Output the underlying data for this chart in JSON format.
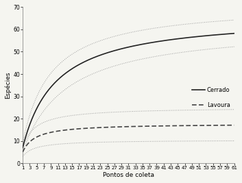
{
  "title": "",
  "xlabel": "Pontos de coleta",
  "ylabel": "Espécies",
  "xlim": [
    1,
    61
  ],
  "ylim": [
    0,
    70
  ],
  "yticks": [
    0,
    10,
    20,
    30,
    40,
    50,
    60,
    70
  ],
  "xtick_labels": [
    "1",
    "3",
    "5",
    "7",
    "9",
    "11",
    "13",
    "15",
    "17",
    "19",
    "21",
    "23",
    "25",
    "27",
    "29",
    "31",
    "33",
    "35",
    "37",
    "39",
    "41",
    "43",
    "45",
    "47",
    "49",
    "51",
    "53",
    "55",
    "57",
    "59",
    "61"
  ],
  "xtick_values": [
    1,
    3,
    5,
    7,
    9,
    11,
    13,
    15,
    17,
    19,
    21,
    23,
    25,
    27,
    29,
    31,
    33,
    35,
    37,
    39,
    41,
    43,
    45,
    47,
    49,
    51,
    53,
    55,
    57,
    59,
    61
  ],
  "cerrado_color": "#222222",
  "lavoura_color": "#444444",
  "ci_color": "#999999",
  "background_color": "#f5f5f0",
  "legend_cerrado": "Cerrado",
  "legend_lavoura": "Lavoura",
  "font_size": 6.5,
  "lw_main": 1.2,
  "lw_ci": 0.7,
  "cerrado_a": 7.826,
  "cerrado_b": 0.118,
  "cerrado_up_a": 10.295,
  "cerrado_up_b": 0.1439,
  "cerrado_lo_a": 5.439,
  "cerrado_lo_b": 0.0877,
  "lavoura_a": 6.957,
  "lavoura_b": 0.3914,
  "lavoura_up_a": 9.706,
  "lavoura_up_b": 0.3866,
  "lavoura_lo_a": 4.209,
  "lavoura_lo_b": 0.4031
}
